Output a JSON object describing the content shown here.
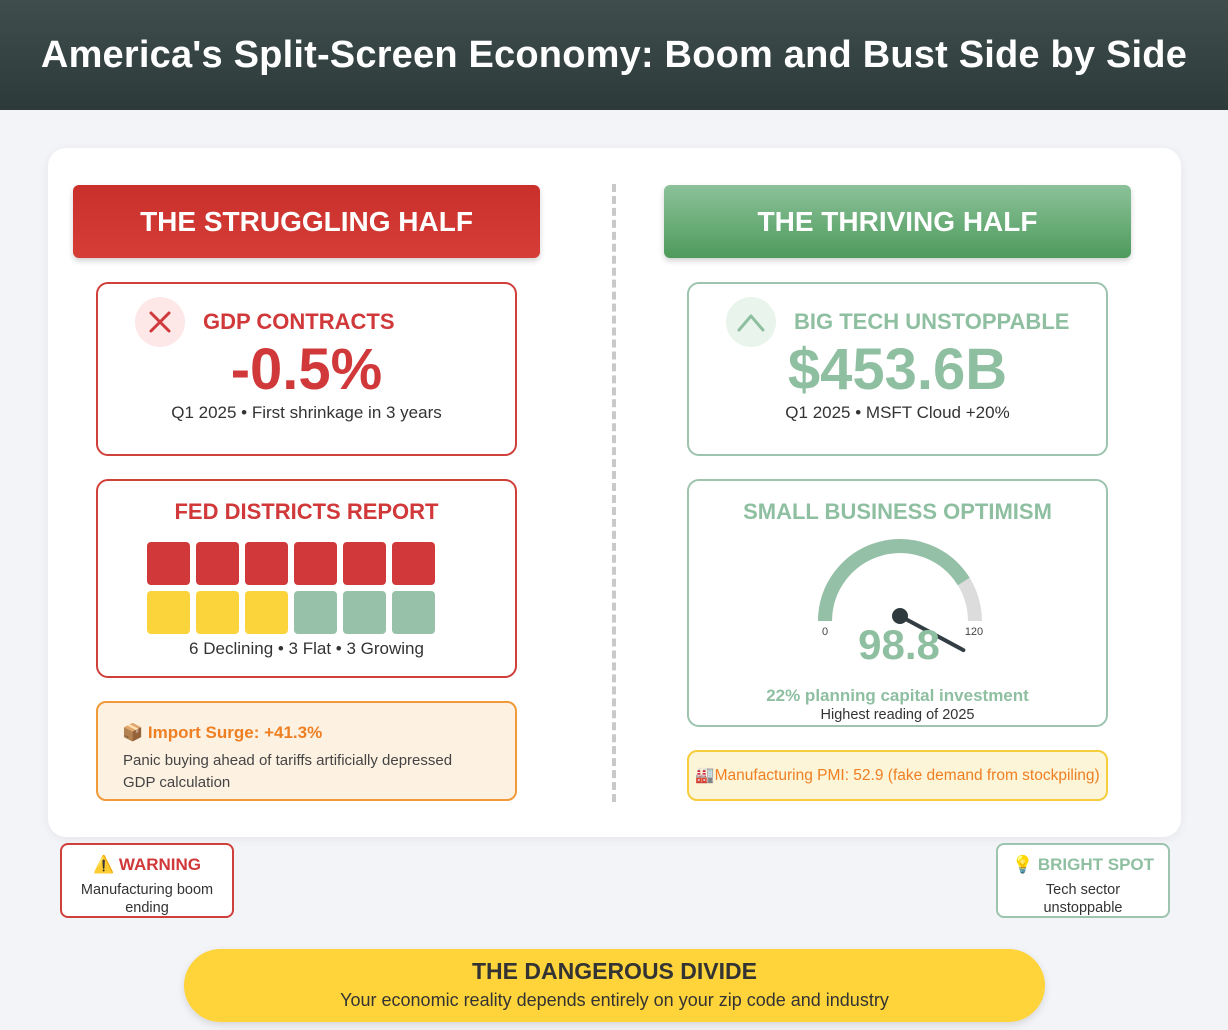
{
  "header": {
    "title": "America's Split-Screen Economy: Boom and Bust Side by Side"
  },
  "left": {
    "header": "THE STRUGGLING HALF",
    "gdp": {
      "icon": "x-icon",
      "title": "GDP CONTRACTS",
      "value": "-0.5%",
      "sub": "Q1 2025 • First shrinkage in 3 years"
    },
    "fed": {
      "title": "FED DISTRICTS REPORT",
      "declining": 6,
      "flat": 3,
      "growing": 3,
      "summary": "6 Declining • 3 Flat • 3 Growing",
      "colors": {
        "declining": "#d0383a",
        "flat": "#fbd43c",
        "growing": "#97c1a8"
      }
    },
    "import": {
      "icon": "package-icon",
      "icon_glyph": "📦",
      "title": "Import Surge: +41.3%",
      "body": "Panic buying ahead of tariffs artificially depressed GDP calculation"
    }
  },
  "right": {
    "header": "THE THRIVING HALF",
    "tech": {
      "icon": "chevron-up-icon",
      "title": "BIG TECH UNSTOPPABLE",
      "value": "$453.6B",
      "sub": "Q1 2025 • MSFT Cloud +20%"
    },
    "optimism": {
      "title": "SMALL BUSINESS OPTIMISM",
      "gauge_min": "0",
      "gauge_max": "120",
      "value": 98.8,
      "value_label": "98.8",
      "planning": "22% planning capital investment",
      "note": "Highest reading of 2025"
    },
    "pmi": {
      "icon": "factory-icon",
      "icon_glyph": "🏭",
      "text": "Manufacturing PMI: 52.9 (fake demand from stockpiling)"
    }
  },
  "warning": {
    "icon": "warning-icon",
    "icon_glyph": "⚠️",
    "title": "WARNING",
    "body": "Manufacturing boom ending"
  },
  "bright": {
    "icon": "lightbulb-icon",
    "icon_glyph": "💡",
    "title": "BRIGHT SPOT",
    "body": "Tech sector unstoppable"
  },
  "banner": {
    "title": "THE DANGEROUS DIVIDE",
    "sub": "Your economic reality depends entirely on your zip code and industry"
  },
  "colors": {
    "red": "#d0383a",
    "green": "#8fbfa1",
    "orange": "#ee7f22",
    "yellow": "#fed43a",
    "header_dark": "#2c3a3a"
  }
}
